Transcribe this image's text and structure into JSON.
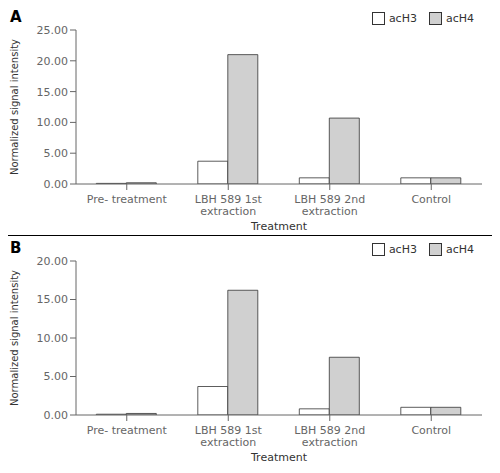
{
  "chart_data": [
    {
      "type": "bar",
      "title": "A",
      "categories": [
        "Pre- treatment",
        "LBH 589 1st\nextraction",
        "LBH 589 2nd\nextraction",
        "Control"
      ],
      "series": [
        {
          "name": "acH3",
          "color": "white",
          "values": [
            0.1,
            3.7,
            1.0,
            1.0
          ]
        },
        {
          "name": "acH4",
          "color": "#d0d0d0",
          "values": [
            0.2,
            21.0,
            10.7,
            1.0
          ]
        }
      ],
      "xlabel": "Treatment",
      "ylabel": "Normalized signal intensity",
      "ylim": [
        0,
        25
      ],
      "yticks": [
        {
          "value": 0,
          "label": "0.00"
        },
        {
          "value": 5,
          "label": "5.00"
        },
        {
          "value": 10,
          "label": "10.00"
        },
        {
          "value": 15,
          "label": "15.00"
        },
        {
          "value": 20,
          "label": "20.00"
        },
        {
          "value": 25,
          "label": "25.00"
        }
      ],
      "legend": "upper right",
      "grid": false
    },
    {
      "type": "bar",
      "title": "B",
      "categories": [
        "Pre- treatment",
        "LBH 589 1st\nextraction",
        "LBH 589 2nd\nextraction",
        "Control"
      ],
      "series": [
        {
          "name": "acH3",
          "color": "white",
          "values": [
            0.1,
            3.7,
            0.8,
            1.0
          ]
        },
        {
          "name": "acH4",
          "color": "#d0d0d0",
          "values": [
            0.2,
            16.2,
            7.5,
            1.0
          ]
        }
      ],
      "xlabel": "Treatment",
      "ylabel": "Normalized signal intensity",
      "ylim": [
        0,
        20
      ],
      "yticks": [
        {
          "value": 0,
          "label": "0.00"
        },
        {
          "value": 5,
          "label": "5.00"
        },
        {
          "value": 10,
          "label": "10.00"
        },
        {
          "value": 15,
          "label": "15.00"
        },
        {
          "value": 20,
          "label": "20.00"
        }
      ],
      "legend": "upper right",
      "grid": false
    }
  ]
}
